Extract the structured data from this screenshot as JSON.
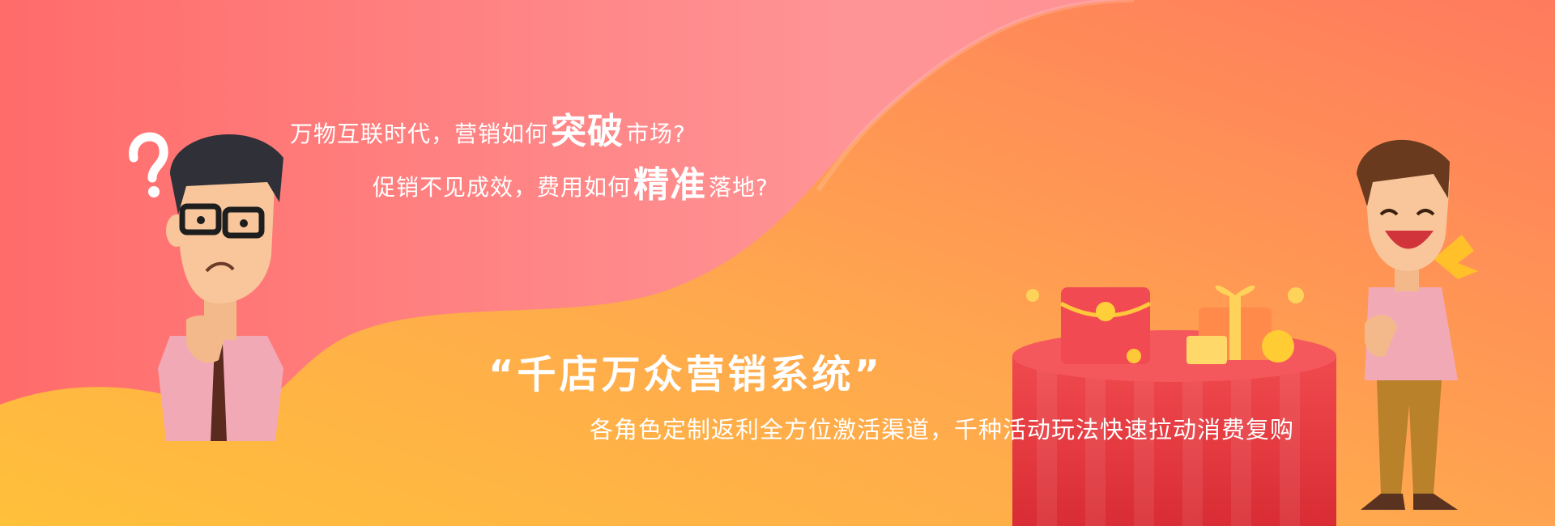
{
  "banner": {
    "line1_pre": "万物互联时代，营销如何",
    "line1_emph": "突破",
    "line1_post": "市场?",
    "line2_pre": "促销不见成效，费用如何",
    "line2_emph": "精准",
    "line2_post": "落地?",
    "title": "“千店万众营销系统”",
    "subtitle": "各角色定制返利全方位激活渠道，千种活动玩法快速拉动消费复购"
  },
  "icons": {
    "left": "confused-man-icon",
    "question": "question-mark-icon",
    "right": "happy-man-icon",
    "gifts": "gift-stage-icon",
    "coin_symbol": "¥"
  },
  "colors": {
    "pink_top": "#ff8a8c",
    "coral": "#ff6f6a",
    "orange": "#ffa64d",
    "yellow": "#ffc23c",
    "red_stage": "#e8383d"
  }
}
